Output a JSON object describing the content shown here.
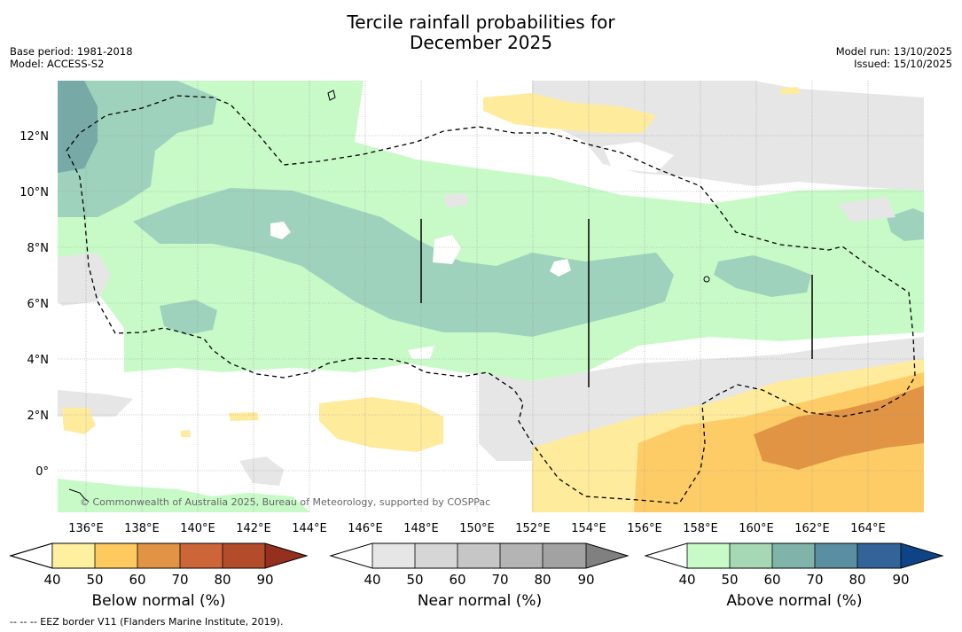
{
  "header": {
    "title_line1": "Tercile rainfall probabilities for",
    "title_line2": "December 2025",
    "base_period": "Base period: 1981-2018",
    "model": "Model: ACCESS-S2",
    "model_run": "Model run: 13/10/2025",
    "issued": "Issued: 15/10/2025"
  },
  "map": {
    "lon_ticks": [
      "136°E",
      "138°E",
      "140°E",
      "142°E",
      "144°E",
      "146°E",
      "148°E",
      "150°E",
      "152°E",
      "154°E",
      "156°E",
      "158°E",
      "160°E",
      "162°E",
      "164°E"
    ],
    "lat_ticks": [
      "12°N",
      "10°N",
      "8°N",
      "6°N",
      "4°N",
      "2°N",
      "0°"
    ],
    "copyright": "© Commonwealth of Australia 2025, Bureau of Meteorology, supported by COSPPac",
    "colors": {
      "above_50": "#c8fac8",
      "above_60": "#9ed2bc",
      "above_70": "#77aaa6",
      "near_40": "#e6e6e6",
      "near_50": "#d6d6d6",
      "below_40": "#ffeb9c",
      "below_50": "#fecc66",
      "below_60": "#e09444"
    }
  },
  "colorbars": [
    {
      "label": "Below normal (%)",
      "ticks": [
        "40",
        "50",
        "60",
        "70",
        "80",
        "90"
      ],
      "colors": [
        "#fff0a0",
        "#fdca60",
        "#e09444",
        "#cc6638",
        "#b24c2a",
        "#952f1e"
      ]
    },
    {
      "label": "Near normal (%)",
      "ticks": [
        "40",
        "50",
        "60",
        "70",
        "80",
        "90"
      ],
      "colors": [
        "#e6e6e6",
        "#d6d6d6",
        "#c6c6c6",
        "#b4b4b4",
        "#a2a2a2",
        "#808080"
      ]
    },
    {
      "label": "Above normal (%)",
      "ticks": [
        "40",
        "50",
        "60",
        "70",
        "80",
        "90"
      ],
      "colors": [
        "#c8fac8",
        "#a6d8b6",
        "#80b4aa",
        "#5a8ea2",
        "#32649a",
        "#0e4486"
      ]
    }
  ],
  "footnote": "--  --  -- EEZ border V11 (Flanders Marine Institute, 2019)."
}
